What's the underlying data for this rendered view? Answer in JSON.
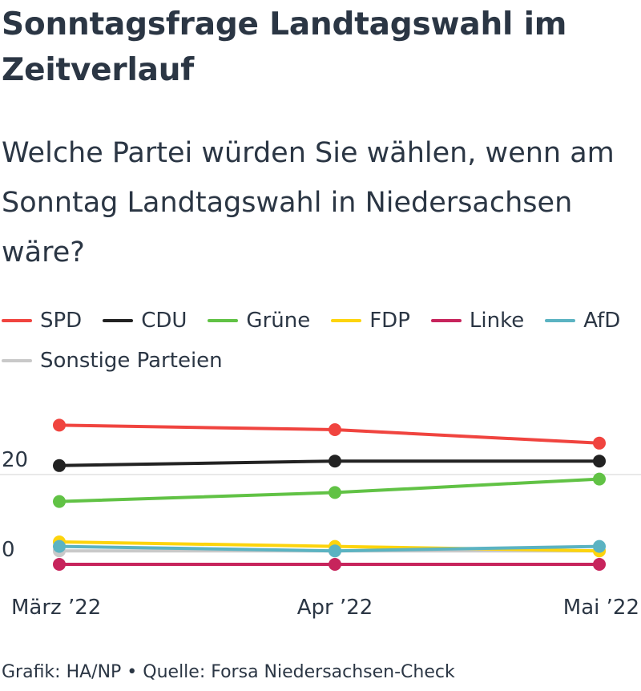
{
  "header": {
    "title": "Sonntagsfrage Landtagswahl im Zeitverlauf",
    "subtitle": "Welche Partei würden Sie wählen, wenn am Sonntag Landtagswahl in Niedersachsen wäre?"
  },
  "footer": {
    "credit": "Grafik: HA/NP • Quelle: Forsa Niedersachsen-Check"
  },
  "chart_data": {
    "type": "line",
    "categories": [
      "März ’22",
      "Apr ’22",
      "Mai ’22"
    ],
    "ylim": [
      0,
      33
    ],
    "yticks": [
      0,
      20
    ],
    "grid": true,
    "legend": "top",
    "series": [
      {
        "name": "SPD",
        "color": "#f0443f",
        "values": [
          31,
          30,
          27
        ]
      },
      {
        "name": "CDU",
        "color": "#222222",
        "values": [
          22,
          23,
          23
        ]
      },
      {
        "name": "Grüne",
        "color": "#61c245",
        "values": [
          14,
          16,
          19
        ]
      },
      {
        "name": "FDP",
        "color": "#fdd40d",
        "values": [
          5,
          4,
          3
        ]
      },
      {
        "name": "Linke",
        "color": "#c7245c",
        "values": [
          0,
          0,
          0
        ]
      },
      {
        "name": "AfD",
        "color": "#5bb3c2",
        "values": [
          4,
          3,
          4
        ]
      },
      {
        "name": "Sonstige Parteien",
        "color": "#c9c9c9",
        "values": [
          3,
          3,
          3
        ]
      }
    ]
  }
}
